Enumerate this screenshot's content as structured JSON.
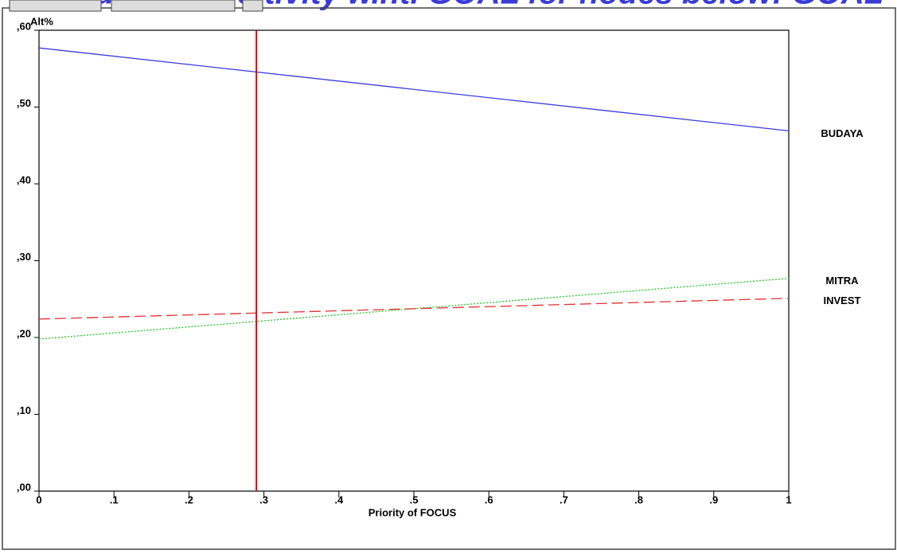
{
  "chart_data": {
    "type": "line",
    "title": "Gradient Sensitivity w.r.t. GOAL for nodes below: GOAL",
    "y_label": "Alt%",
    "x_label": "Priority of FOCUS",
    "x": [
      0,
      1
    ],
    "series": [
      {
        "name": "BUDAYA",
        "color": "#3c3cdc",
        "dash": "solid",
        "values": [
          0.577,
          0.469
        ]
      },
      {
        "name": "MITRA",
        "color": "#22cc22",
        "dash": "dotted",
        "values": [
          0.198,
          0.277
        ]
      },
      {
        "name": "INVEST",
        "color": "#e03030",
        "dash": "dashed",
        "values": [
          0.224,
          0.251
        ]
      }
    ],
    "current_priority": 0.29,
    "current_color": "#e00000",
    "xlim": [
      0,
      1
    ],
    "ylim": [
      0,
      0.6
    ],
    "xticks": [
      0,
      {
        "value": 0.1,
        "label": ".1"
      },
      {
        "value": 0.2,
        "label": ".2"
      },
      {
        "value": 0.3,
        "label": ".3"
      },
      {
        "value": 0.4,
        "label": ".4"
      },
      {
        "value": 0.5,
        "label": ".5"
      },
      {
        "value": 0.6,
        "label": ".6"
      },
      {
        "value": 0.7,
        "label": ".7"
      },
      {
        "value": 0.8,
        "label": ".8"
      },
      {
        "value": 0.9,
        "label": ".9"
      },
      1
    ],
    "yticks": [
      {
        "value": 0,
        "label": ",00"
      },
      {
        "value": 0.1,
        "label": ",10"
      },
      {
        "value": 0.2,
        "label": ",20"
      },
      {
        "value": 0.3,
        "label": ",30"
      },
      {
        "value": 0.4,
        "label": ",40"
      },
      {
        "value": 0.5,
        "label": ",50"
      },
      {
        "value": 0.6,
        "label": ",60"
      }
    ]
  }
}
